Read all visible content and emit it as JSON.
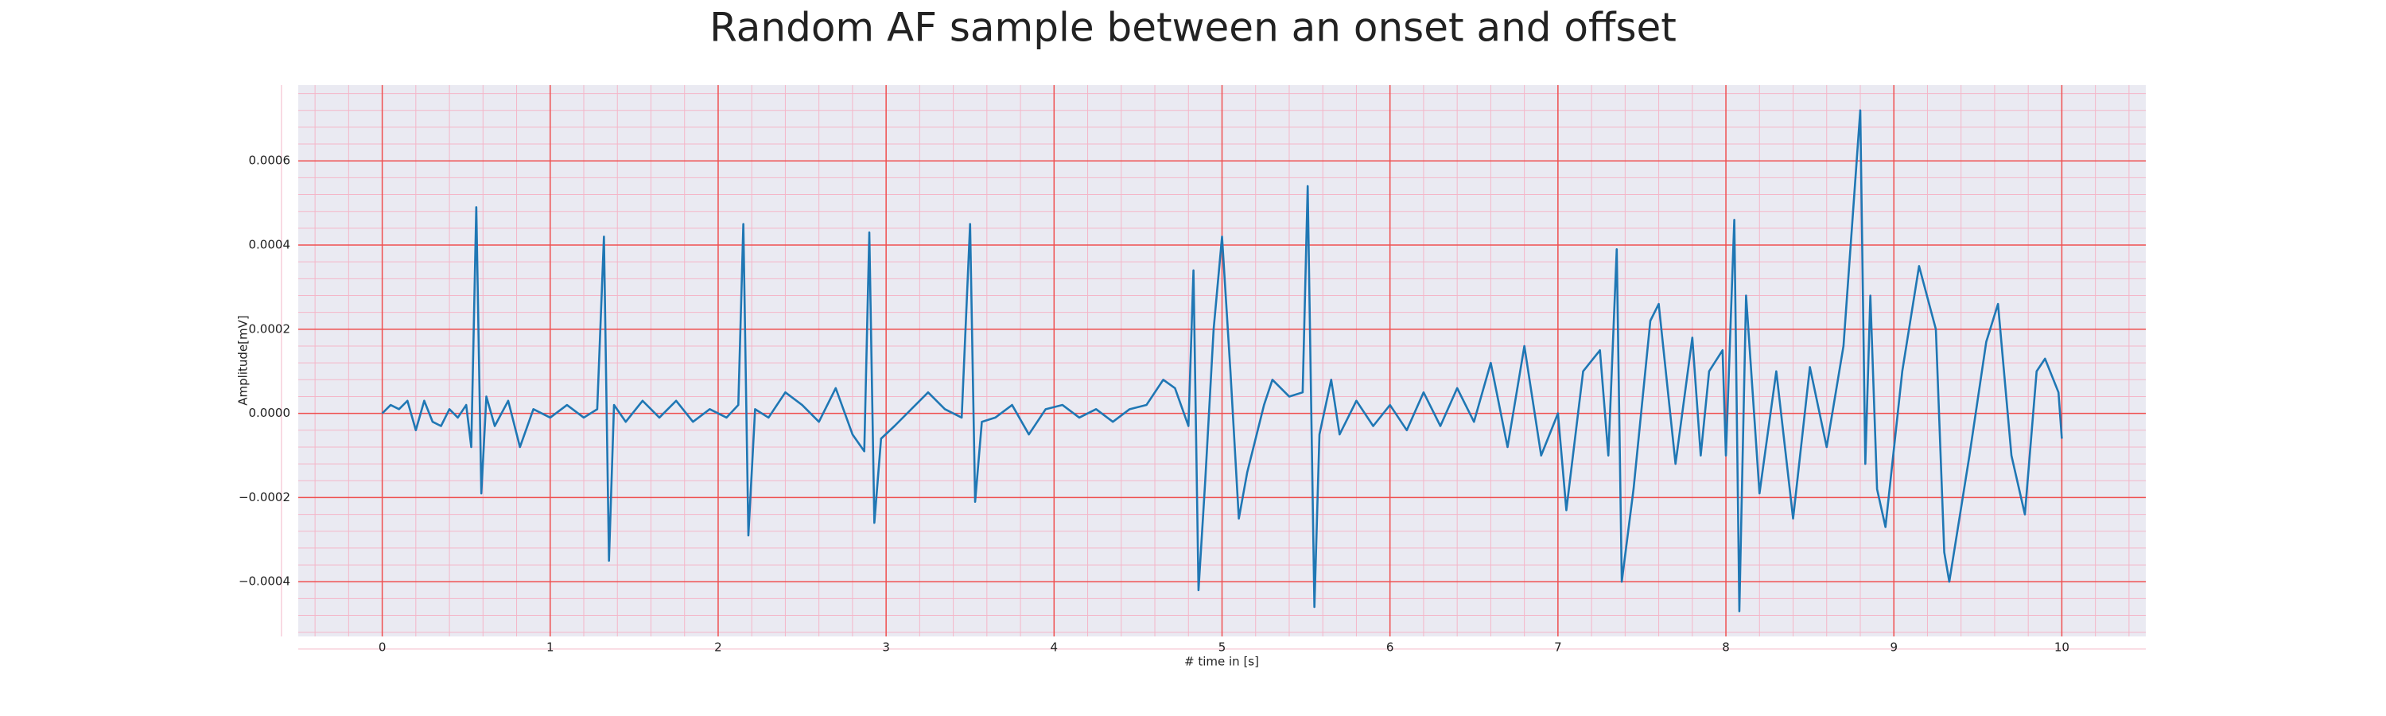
{
  "chart_data": {
    "type": "line",
    "title": "Random AF sample between an onset and offset",
    "xlabel": "# time in [s]",
    "ylabel": "Amplitude[mV]",
    "color": "#1f77b4",
    "grid": true,
    "minor_grid": true,
    "x": [
      0,
      0.05,
      0.1,
      0.15,
      0.2,
      0.25,
      0.3,
      0.35,
      0.4,
      0.45,
      0.5,
      0.53,
      0.56,
      0.59,
      0.62,
      0.67,
      0.75,
      0.82,
      0.9,
      1.0,
      1.1,
      1.2,
      1.28,
      1.32,
      1.35,
      1.38,
      1.45,
      1.55,
      1.65,
      1.75,
      1.85,
      1.95,
      2.05,
      2.12,
      2.15,
      2.18,
      2.22,
      2.3,
      2.4,
      2.5,
      2.6,
      2.7,
      2.8,
      2.87,
      2.9,
      2.93,
      2.97,
      3.05,
      3.15,
      3.25,
      3.35,
      3.45,
      3.5,
      3.53,
      3.57,
      3.65,
      3.75,
      3.85,
      3.95,
      4.05,
      4.15,
      4.25,
      4.35,
      4.45,
      4.55,
      4.65,
      4.72,
      4.8,
      4.83,
      4.86,
      4.9,
      4.95,
      5.0,
      5.05,
      5.1,
      5.15,
      5.25,
      5.3,
      5.4,
      5.48,
      5.51,
      5.55,
      5.58,
      5.65,
      5.7,
      5.8,
      5.9,
      6.0,
      6.1,
      6.2,
      6.3,
      6.4,
      6.5,
      6.6,
      6.7,
      6.8,
      6.9,
      7.0,
      7.05,
      7.15,
      7.25,
      7.3,
      7.35,
      7.38,
      7.45,
      7.55,
      7.6,
      7.7,
      7.8,
      7.85,
      7.9,
      7.98,
      8.0,
      8.05,
      8.08,
      8.12,
      8.2,
      8.3,
      8.4,
      8.5,
      8.6,
      8.7,
      8.8,
      8.83,
      8.86,
      8.9,
      8.95,
      9.05,
      9.15,
      9.25,
      9.3,
      9.33,
      9.45,
      9.55,
      9.62,
      9.7,
      9.78,
      9.85,
      9.9,
      9.98,
      10.0
    ],
    "values": [
      0,
      2e-05,
      1e-05,
      3e-05,
      -4e-05,
      3e-05,
      -2e-05,
      -3e-05,
      1e-05,
      -1e-05,
      2e-05,
      -8e-05,
      0.00049,
      -0.00019,
      4e-05,
      -3e-05,
      3e-05,
      -8e-05,
      1e-05,
      -1e-05,
      2e-05,
      -1e-05,
      1e-05,
      0.00042,
      -0.00035,
      2e-05,
      -2e-05,
      3e-05,
      -1e-05,
      3e-05,
      -2e-05,
      1e-05,
      -1e-05,
      2e-05,
      0.00045,
      -0.00029,
      1e-05,
      -1e-05,
      5e-05,
      2e-05,
      -2e-05,
      6e-05,
      -5e-05,
      -9e-05,
      0.00043,
      -0.00026,
      -6e-05,
      -3e-05,
      1e-05,
      5e-05,
      1e-05,
      -1e-05,
      0.00045,
      -0.00021,
      -2e-05,
      -1e-05,
      2e-05,
      -5e-05,
      1e-05,
      2e-05,
      -1e-05,
      1e-05,
      -2e-05,
      1e-05,
      2e-05,
      8e-05,
      6e-05,
      -3e-05,
      0.00034,
      -0.00042,
      -0.00016,
      0.0002,
      0.00042,
      0.0001,
      -0.00025,
      -0.00014,
      2e-05,
      8e-05,
      4e-05,
      5e-05,
      0.00054,
      -0.00046,
      -5e-05,
      8e-05,
      -5e-05,
      3e-05,
      -3e-05,
      2e-05,
      -4e-05,
      5e-05,
      -3e-05,
      6e-05,
      -2e-05,
      0.00012,
      -8e-05,
      0.00016,
      -0.0001,
      0,
      -0.00023,
      0.0001,
      0.00015,
      -0.0001,
      0.00039,
      -0.0004,
      -0.00018,
      0.00022,
      0.00026,
      -0.00012,
      0.00018,
      -0.0001,
      0.0001,
      0.00015,
      -0.0001,
      0.00046,
      -0.00047,
      0.00028,
      -0.00019,
      0.0001,
      -0.00025,
      0.00011,
      -8e-05,
      0.00016,
      0.00072,
      -0.00012,
      0.00028,
      -0.00018,
      -0.00027,
      0.0001,
      0.00035,
      0.0002,
      -0.00033,
      -0.0004,
      -0.0001,
      0.00017,
      0.00026,
      -0.0001,
      -0.00024,
      0.0001,
      0.00013,
      5e-05,
      -6e-05
    ],
    "xlim": [
      -0.5,
      10.5
    ],
    "xticks": [
      0,
      1,
      2,
      3,
      4,
      5,
      6,
      7,
      8,
      9,
      10
    ],
    "ylim": [
      -0.00053,
      0.00078
    ],
    "yticks": [
      {
        "value": -0.0004,
        "label": "−0.0004"
      },
      {
        "value": -0.0002,
        "label": "−0.0002"
      },
      {
        "value": 0,
        "label": "0.0000"
      },
      {
        "value": 0.0002,
        "label": "0.0002"
      },
      {
        "value": 0.0004,
        "label": "0.0004"
      },
      {
        "value": 0.0006,
        "label": "0.0006"
      }
    ]
  }
}
